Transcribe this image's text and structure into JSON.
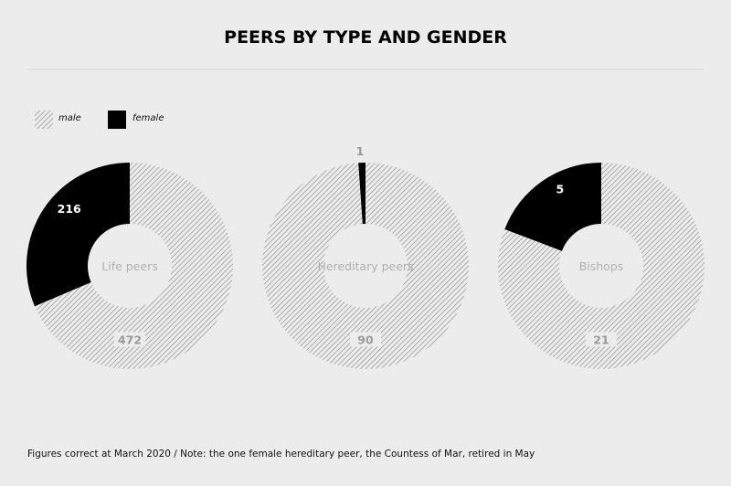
{
  "chart_data": {
    "type": "pie",
    "title": "PEERS BY TYPE AND GENDER",
    "legend": {
      "placement": "top-left",
      "entries": [
        {
          "name": "male",
          "pattern": "hatched"
        },
        {
          "name": "female",
          "color": "#000000"
        }
      ]
    },
    "charts": [
      {
        "label": "Life peers",
        "slices": [
          {
            "name": "male",
            "value": 472
          },
          {
            "name": "female",
            "value": 216
          }
        ]
      },
      {
        "label": "Hereditary peers",
        "slices": [
          {
            "name": "male",
            "value": 90
          },
          {
            "name": "female",
            "value": 1
          }
        ]
      },
      {
        "label": "Bishops",
        "slices": [
          {
            "name": "male",
            "value": 21
          },
          {
            "name": "female",
            "value": 5
          }
        ]
      }
    ],
    "footnote": "Figures correct at March 2020 / Note: the one female hereditary peer, the Countess of Mar, retired in May"
  },
  "colors": {
    "background": "#ececec",
    "male_hatch": "#9a9a9a",
    "female": "#000000",
    "center_label": "#b0b0b0",
    "divider": "#d6d6d6"
  }
}
